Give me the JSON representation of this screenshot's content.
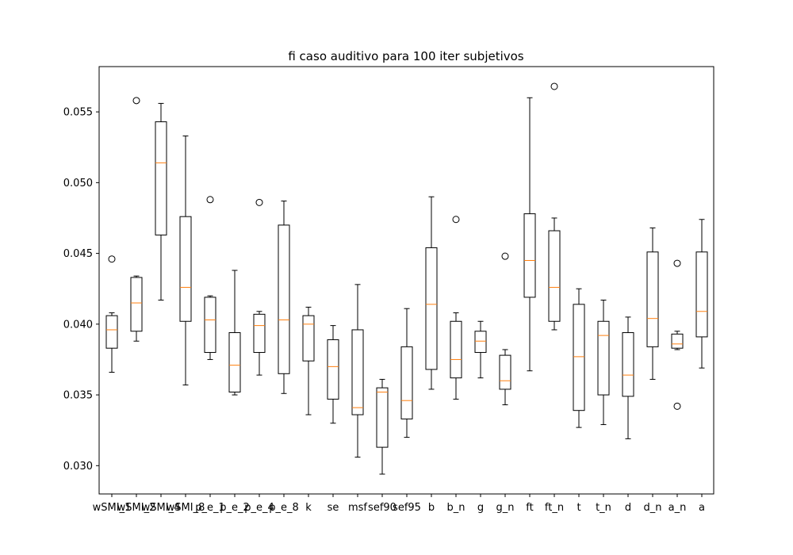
{
  "chart_data": {
    "type": "boxplot",
    "title": "fi caso auditivo para 100 iter subjetivos",
    "xlabel": "",
    "ylabel": "",
    "ylim": [
      0.028,
      0.0582
    ],
    "yticks": [
      0.03,
      0.035,
      0.04,
      0.045,
      0.05,
      0.055
    ],
    "ytick_labels": [
      "0.030",
      "0.035",
      "0.040",
      "0.045",
      "0.050",
      "0.055"
    ],
    "grid": false,
    "colors": {
      "box": "#000000",
      "median": "#ff7f0e",
      "flier": "#000000"
    },
    "categories": [
      "wSMI_1",
      "wSMI_2",
      "wSMI_4",
      "wSMI_8",
      "p_e_1",
      "p_e_2",
      "p_e_4",
      "p_e_8",
      "k",
      "se",
      "msf",
      "sef90",
      "sef95",
      "b",
      "b_n",
      "g",
      "g_n",
      "ft",
      "ft_n",
      "t",
      "t_n",
      "d",
      "d_n",
      "a_n",
      "a"
    ],
    "boxes": [
      {
        "label": "wSMI_1",
        "whislo": 0.0366,
        "q1": 0.0383,
        "med": 0.0396,
        "q3": 0.0406,
        "whishi": 0.0408,
        "fliers": [
          0.0446
        ]
      },
      {
        "label": "wSMI_2",
        "whislo": 0.0388,
        "q1": 0.0395,
        "med": 0.0415,
        "q3": 0.0433,
        "whishi": 0.0434,
        "fliers": [
          0.0558
        ]
      },
      {
        "label": "wSMI_4",
        "whislo": 0.0417,
        "q1": 0.0463,
        "med": 0.0514,
        "q3": 0.0543,
        "whishi": 0.0556,
        "fliers": []
      },
      {
        "label": "wSMI_8",
        "whislo": 0.0357,
        "q1": 0.0402,
        "med": 0.0426,
        "q3": 0.0476,
        "whishi": 0.0533,
        "fliers": []
      },
      {
        "label": "p_e_1",
        "whislo": 0.0375,
        "q1": 0.038,
        "med": 0.0403,
        "q3": 0.0419,
        "whishi": 0.042,
        "fliers": [
          0.0488
        ]
      },
      {
        "label": "p_e_2",
        "whislo": 0.035,
        "q1": 0.0352,
        "med": 0.0371,
        "q3": 0.0394,
        "whishi": 0.0438,
        "fliers": []
      },
      {
        "label": "p_e_4",
        "whislo": 0.0364,
        "q1": 0.038,
        "med": 0.0399,
        "q3": 0.0407,
        "whishi": 0.0409,
        "fliers": [
          0.0486
        ]
      },
      {
        "label": "p_e_8",
        "whislo": 0.0351,
        "q1": 0.0365,
        "med": 0.0403,
        "q3": 0.047,
        "whishi": 0.0487,
        "fliers": []
      },
      {
        "label": "k",
        "whislo": 0.0336,
        "q1": 0.0374,
        "med": 0.04,
        "q3": 0.0406,
        "whishi": 0.0412,
        "fliers": []
      },
      {
        "label": "se",
        "whislo": 0.033,
        "q1": 0.0347,
        "med": 0.037,
        "q3": 0.0389,
        "whishi": 0.0399,
        "fliers": []
      },
      {
        "label": "msf",
        "whislo": 0.0306,
        "q1": 0.0336,
        "med": 0.0341,
        "q3": 0.0396,
        "whishi": 0.0428,
        "fliers": []
      },
      {
        "label": "sef90",
        "whislo": 0.0294,
        "q1": 0.0313,
        "med": 0.0352,
        "q3": 0.0355,
        "whishi": 0.0361,
        "fliers": []
      },
      {
        "label": "sef95",
        "whislo": 0.032,
        "q1": 0.0333,
        "med": 0.0346,
        "q3": 0.0384,
        "whishi": 0.0411,
        "fliers": []
      },
      {
        "label": "b",
        "whislo": 0.0354,
        "q1": 0.0368,
        "med": 0.0414,
        "q3": 0.0454,
        "whishi": 0.049,
        "fliers": []
      },
      {
        "label": "b_n",
        "whislo": 0.0347,
        "q1": 0.0362,
        "med": 0.0375,
        "q3": 0.0402,
        "whishi": 0.0408,
        "fliers": [
          0.0474
        ]
      },
      {
        "label": "g",
        "whislo": 0.0362,
        "q1": 0.038,
        "med": 0.0388,
        "q3": 0.0395,
        "whishi": 0.0402,
        "fliers": []
      },
      {
        "label": "g_n",
        "whislo": 0.0343,
        "q1": 0.0354,
        "med": 0.036,
        "q3": 0.0378,
        "whishi": 0.0382,
        "fliers": [
          0.0448
        ]
      },
      {
        "label": "ft",
        "whislo": 0.0367,
        "q1": 0.0419,
        "med": 0.0445,
        "q3": 0.0478,
        "whishi": 0.056,
        "fliers": []
      },
      {
        "label": "ft_n",
        "whislo": 0.0396,
        "q1": 0.0402,
        "med": 0.0426,
        "q3": 0.0466,
        "whishi": 0.0475,
        "fliers": [
          0.0568
        ]
      },
      {
        "label": "t",
        "whislo": 0.0327,
        "q1": 0.0339,
        "med": 0.0377,
        "q3": 0.0414,
        "whishi": 0.0425,
        "fliers": []
      },
      {
        "label": "t_n",
        "whislo": 0.0329,
        "q1": 0.035,
        "med": 0.0392,
        "q3": 0.0402,
        "whishi": 0.0417,
        "fliers": []
      },
      {
        "label": "d",
        "whislo": 0.0319,
        "q1": 0.0349,
        "med": 0.0364,
        "q3": 0.0394,
        "whishi": 0.0405,
        "fliers": []
      },
      {
        "label": "d_n",
        "whislo": 0.0361,
        "q1": 0.0384,
        "med": 0.0404,
        "q3": 0.0451,
        "whishi": 0.0468,
        "fliers": []
      },
      {
        "label": "a_n",
        "whislo": 0.0382,
        "q1": 0.0383,
        "med": 0.0386,
        "q3": 0.0393,
        "whishi": 0.0395,
        "fliers": [
          0.0443,
          0.0342
        ]
      },
      {
        "label": "a",
        "whislo": 0.0369,
        "q1": 0.0391,
        "med": 0.0409,
        "q3": 0.0451,
        "whishi": 0.0474,
        "fliers": []
      }
    ]
  }
}
